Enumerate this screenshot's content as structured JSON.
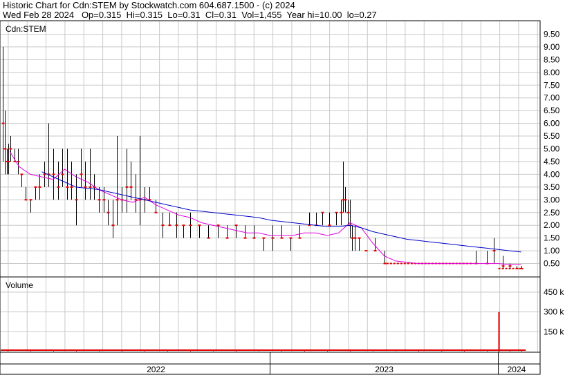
{
  "header": {
    "line1": "Historic Chart for Cdn:STEM by Stockwatch.com 604.687.1500 - (c) 2024",
    "line2": "Wed Feb 28 2024   Op=0.315  Hi=0.315  Lo=0.31  Cl=0.31  Vol=1,455  Year hi=10.00  lo=0.27"
  },
  "colors": {
    "price_bar": "#000000",
    "price_mark": "#e00000",
    "ma_short": "#e000e0",
    "ma_long": "#0000c8",
    "volume_bar": "#e00000",
    "grid": "#c8c8c8"
  },
  "chart_data": [
    {
      "type": "line",
      "panel": "price",
      "label": "Cdn:STEM",
      "ylim": [
        0,
        10.0
      ],
      "yticks": [
        "9.50",
        "9.00",
        "8.50",
        "8.00",
        "7.50",
        "7.00",
        "6.50",
        "6.00",
        "5.50",
        "5.00",
        "4.50",
        "4.00",
        "3.50",
        "3.00",
        "2.50",
        "2.00",
        "1.50",
        "1.00",
        "0.50"
      ],
      "ytick_values": [
        9.5,
        9.0,
        8.5,
        8.0,
        7.5,
        7.0,
        6.5,
        6.0,
        5.5,
        5.0,
        4.5,
        4.0,
        3.5,
        3.0,
        2.5,
        2.0,
        1.5,
        1.0,
        0.5
      ],
      "x_range": [
        2021.82,
        2024.18
      ],
      "grid": true,
      "bars": [
        {
          "x": 2021.83,
          "hi": 9.0,
          "lo": 4.5,
          "c": 6.0
        },
        {
          "x": 2021.838,
          "hi": 6.5,
          "lo": 4.0,
          "c": 5.0
        },
        {
          "x": 2021.846,
          "hi": 5.0,
          "lo": 4.0,
          "c": 4.5
        },
        {
          "x": 2021.854,
          "hi": 5.2,
          "lo": 4.0,
          "c": 4.5
        },
        {
          "x": 2021.862,
          "hi": 5.5,
          "lo": 4.5,
          "c": 5.0
        },
        {
          "x": 2021.88,
          "hi": 5.0,
          "lo": 4.5,
          "c": 4.5
        },
        {
          "x": 2021.895,
          "hi": 5.0,
          "lo": 4.0,
          "c": 4.5
        },
        {
          "x": 2021.91,
          "hi": 4.0,
          "lo": 3.5,
          "c": 4.0
        },
        {
          "x": 2021.93,
          "hi": 3.5,
          "lo": 3.0,
          "c": 3.0
        },
        {
          "x": 2021.95,
          "hi": 3.0,
          "lo": 2.5,
          "c": 3.0
        },
        {
          "x": 2021.97,
          "hi": 3.5,
          "lo": 3.0,
          "c": 3.5
        },
        {
          "x": 2021.99,
          "hi": 4.0,
          "lo": 3.0,
          "c": 3.5
        },
        {
          "x": 2022.01,
          "hi": 4.5,
          "lo": 3.5,
          "c": 4.0
        },
        {
          "x": 2022.03,
          "hi": 6.0,
          "lo": 3.5,
          "c": 4.0
        },
        {
          "x": 2022.05,
          "hi": 5.0,
          "lo": 3.0,
          "c": 4.0
        },
        {
          "x": 2022.07,
          "hi": 4.5,
          "lo": 3.0,
          "c": 3.5
        },
        {
          "x": 2022.09,
          "hi": 5.0,
          "lo": 3.5,
          "c": 4.0
        },
        {
          "x": 2022.11,
          "hi": 5.0,
          "lo": 3.0,
          "c": 3.5
        },
        {
          "x": 2022.13,
          "hi": 4.5,
          "lo": 3.0,
          "c": 3.5
        },
        {
          "x": 2022.15,
          "hi": 4.0,
          "lo": 2.0,
          "c": 3.0
        },
        {
          "x": 2022.17,
          "hi": 5.0,
          "lo": 3.5,
          "c": 4.0
        },
        {
          "x": 2022.19,
          "hi": 4.5,
          "lo": 3.0,
          "c": 3.5
        },
        {
          "x": 2022.21,
          "hi": 5.0,
          "lo": 3.0,
          "c": 3.5
        },
        {
          "x": 2022.23,
          "hi": 4.0,
          "lo": 3.0,
          "c": 3.5
        },
        {
          "x": 2022.25,
          "hi": 3.5,
          "lo": 2.5,
          "c": 3.0
        },
        {
          "x": 2022.27,
          "hi": 3.5,
          "lo": 2.5,
          "c": 3.0
        },
        {
          "x": 2022.29,
          "hi": 3.0,
          "lo": 2.0,
          "c": 2.5
        },
        {
          "x": 2022.31,
          "hi": 3.0,
          "lo": 1.5,
          "c": 2.0
        },
        {
          "x": 2022.33,
          "hi": 5.5,
          "lo": 2.0,
          "c": 3.0
        },
        {
          "x": 2022.35,
          "hi": 3.5,
          "lo": 2.5,
          "c": 3.0
        },
        {
          "x": 2022.37,
          "hi": 5.0,
          "lo": 2.5,
          "c": 3.5
        },
        {
          "x": 2022.39,
          "hi": 4.5,
          "lo": 3.0,
          "c": 3.5
        },
        {
          "x": 2022.41,
          "hi": 4.0,
          "lo": 2.5,
          "c": 3.0
        },
        {
          "x": 2022.43,
          "hi": 5.5,
          "lo": 2.0,
          "c": 3.0
        },
        {
          "x": 2022.45,
          "hi": 3.5,
          "lo": 2.5,
          "c": 3.0
        },
        {
          "x": 2022.47,
          "hi": 3.5,
          "lo": 3.0,
          "c": 3.0
        },
        {
          "x": 2022.5,
          "hi": 3.0,
          "lo": 2.5,
          "c": 2.5
        },
        {
          "x": 2022.53,
          "hi": 2.5,
          "lo": 1.5,
          "c": 2.0
        },
        {
          "x": 2022.56,
          "hi": 2.5,
          "lo": 2.0,
          "c": 2.0
        },
        {
          "x": 2022.59,
          "hi": 2.5,
          "lo": 1.5,
          "c": 2.0
        },
        {
          "x": 2022.62,
          "hi": 2.0,
          "lo": 1.5,
          "c": 2.0
        },
        {
          "x": 2022.65,
          "hi": 2.5,
          "lo": 1.5,
          "c": 2.0
        },
        {
          "x": 2022.69,
          "hi": 2.0,
          "lo": 1.5,
          "c": 2.0
        },
        {
          "x": 2022.73,
          "hi": 2.0,
          "lo": 1.5,
          "c": 1.5
        },
        {
          "x": 2022.77,
          "hi": 2.0,
          "lo": 1.5,
          "c": 2.0
        },
        {
          "x": 2022.81,
          "hi": 2.0,
          "lo": 1.5,
          "c": 1.5
        },
        {
          "x": 2022.85,
          "hi": 2.0,
          "lo": 1.5,
          "c": 2.0
        },
        {
          "x": 2022.89,
          "hi": 2.0,
          "lo": 1.5,
          "c": 1.5
        },
        {
          "x": 2022.93,
          "hi": 2.0,
          "lo": 1.5,
          "c": 1.5
        },
        {
          "x": 2022.97,
          "hi": 1.5,
          "lo": 1.0,
          "c": 1.5
        },
        {
          "x": 2023.01,
          "hi": 2.0,
          "lo": 1.0,
          "c": 1.5
        },
        {
          "x": 2023.05,
          "hi": 2.0,
          "lo": 1.5,
          "c": 1.5
        },
        {
          "x": 2023.09,
          "hi": 1.5,
          "lo": 1.0,
          "c": 1.5
        },
        {
          "x": 2023.13,
          "hi": 2.0,
          "lo": 1.5,
          "c": 1.5
        },
        {
          "x": 2023.17,
          "hi": 2.5,
          "lo": 2.0,
          "c": 2.0
        },
        {
          "x": 2023.2,
          "hi": 2.5,
          "lo": 2.0,
          "c": 2.0
        },
        {
          "x": 2023.23,
          "hi": 2.5,
          "lo": 2.0,
          "c": 2.5
        },
        {
          "x": 2023.26,
          "hi": 2.5,
          "lo": 2.0,
          "c": 2.0
        },
        {
          "x": 2023.29,
          "hi": 2.5,
          "lo": 2.0,
          "c": 2.5
        },
        {
          "x": 2023.31,
          "hi": 3.0,
          "lo": 2.0,
          "c": 2.5
        },
        {
          "x": 2023.32,
          "hi": 4.5,
          "lo": 2.5,
          "c": 3.0
        },
        {
          "x": 2023.33,
          "hi": 3.5,
          "lo": 2.5,
          "c": 3.0
        },
        {
          "x": 2023.34,
          "hi": 3.0,
          "lo": 2.0,
          "c": 2.5
        },
        {
          "x": 2023.35,
          "hi": 3.0,
          "lo": 1.5,
          "c": 2.0
        },
        {
          "x": 2023.36,
          "hi": 2.0,
          "lo": 1.0,
          "c": 1.5
        },
        {
          "x": 2023.37,
          "hi": 2.0,
          "lo": 1.0,
          "c": 1.5
        },
        {
          "x": 2023.39,
          "hi": 1.5,
          "lo": 1.0,
          "c": 1.5
        },
        {
          "x": 2023.42,
          "hi": 1.0,
          "lo": 1.0,
          "c": 1.0
        },
        {
          "x": 2023.46,
          "hi": 1.5,
          "lo": 1.0,
          "c": 1.0
        },
        {
          "x": 2023.5,
          "hi": 1.0,
          "lo": 0.5,
          "c": 0.5
        },
        {
          "x": 2023.9,
          "hi": 1.0,
          "lo": 0.5,
          "c": 0.5
        },
        {
          "x": 2023.95,
          "hi": 1.0,
          "lo": 0.5,
          "c": 0.5
        },
        {
          "x": 2023.98,
          "hi": 1.5,
          "lo": 0.5,
          "c": 1.0
        },
        {
          "x": 2024.02,
          "hi": 0.8,
          "lo": 0.3,
          "c": 0.4
        },
        {
          "x": 2024.05,
          "hi": 0.5,
          "lo": 0.3,
          "c": 0.4
        },
        {
          "x": 2024.08,
          "hi": 0.4,
          "lo": 0.3,
          "c": 0.3
        },
        {
          "x": 2024.1,
          "hi": 0.4,
          "lo": 0.28,
          "c": 0.3
        }
      ],
      "flat": [
        {
          "x0": 2023.51,
          "x1": 2023.89,
          "y": 0.5
        },
        {
          "x0": 2024.0,
          "x1": 2024.1,
          "y": 0.3
        }
      ],
      "series": [
        {
          "x": [
            2021.86,
            2021.9,
            2021.95,
            2022.0,
            2022.05,
            2022.1,
            2022.15,
            2022.2,
            2022.25,
            2022.3,
            2022.35,
            2022.4,
            2022.45,
            2022.5,
            2022.55,
            2022.6,
            2022.65,
            2022.7,
            2022.75,
            2022.8,
            2022.85,
            2022.9,
            2022.95,
            2023.0,
            2023.05,
            2023.1,
            2023.15,
            2023.2,
            2023.25,
            2023.3,
            2023.35,
            2023.4,
            2023.45,
            2023.5,
            2023.55,
            2023.6,
            2023.65,
            2023.7,
            2023.75,
            2023.8,
            2023.85,
            2023.9,
            2023.95,
            2024.0,
            2024.05,
            2024.1
          ],
          "values": [
            4.9,
            4.3,
            4.0,
            3.9,
            3.8,
            4.2,
            3.9,
            3.7,
            3.4,
            3.2,
            3.0,
            2.9,
            3.1,
            2.8,
            2.6,
            2.4,
            2.3,
            2.1,
            2.0,
            1.9,
            1.8,
            1.7,
            1.7,
            1.6,
            1.6,
            1.6,
            1.7,
            1.7,
            1.6,
            1.7,
            2.1,
            1.9,
            1.3,
            0.8,
            0.6,
            0.55,
            0.5,
            0.5,
            0.5,
            0.5,
            0.5,
            0.5,
            0.5,
            0.5,
            0.45,
            0.45
          ]
        },
        {
          "x": [
            2022.0,
            2022.05,
            2022.1,
            2022.15,
            2022.2,
            2022.25,
            2022.3,
            2022.35,
            2022.4,
            2022.45,
            2022.5,
            2022.55,
            2022.6,
            2022.65,
            2022.7,
            2022.75,
            2022.8,
            2022.85,
            2022.9,
            2022.95,
            2023.0,
            2023.05,
            2023.1,
            2023.15,
            2023.2,
            2023.25,
            2023.3,
            2023.35,
            2023.4,
            2023.45,
            2023.5,
            2023.55,
            2023.6,
            2023.65,
            2023.7,
            2023.75,
            2023.8,
            2023.85,
            2023.9,
            2023.95,
            2024.0,
            2024.05,
            2024.1
          ],
          "values": [
            4.1,
            3.9,
            3.7,
            3.5,
            3.45,
            3.4,
            3.3,
            3.2,
            3.1,
            3.0,
            2.9,
            2.8,
            2.7,
            2.6,
            2.55,
            2.5,
            2.45,
            2.4,
            2.35,
            2.3,
            2.2,
            2.15,
            2.1,
            2.05,
            2.0,
            1.95,
            1.95,
            2.0,
            1.9,
            1.75,
            1.65,
            1.55,
            1.45,
            1.4,
            1.35,
            1.3,
            1.25,
            1.2,
            1.15,
            1.1,
            1.05,
            1.0,
            0.95
          ]
        }
      ]
    },
    {
      "type": "bar",
      "panel": "volume",
      "label": "Volume",
      "ylim": [
        0,
        560
      ],
      "yticks": [
        "450 k",
        "300 k",
        "150 k"
      ],
      "ytick_values": [
        450,
        300,
        150
      ],
      "x_range": [
        2021.82,
        2024.18
      ],
      "grid": true,
      "x": [
        2021.85,
        2021.95,
        2022.05,
        2022.15,
        2022.25,
        2022.35,
        2022.45,
        2022.55,
        2022.65,
        2022.75,
        2022.85,
        2022.95,
        2023.05,
        2023.15,
        2023.25,
        2023.35,
        2023.45,
        2023.55,
        2023.65,
        2023.75,
        2023.85,
        2023.95,
        2024.0,
        2024.05,
        2024.1
      ],
      "values": [
        15,
        10,
        8,
        12,
        6,
        10,
        8,
        5,
        6,
        4,
        5,
        4,
        5,
        6,
        5,
        8,
        4,
        3,
        5,
        4,
        6,
        10,
        300,
        12,
        5
      ]
    }
  ],
  "x_axis": {
    "labels": [
      "2022",
      "2023",
      "2024"
    ],
    "label_x": [
      2022.5,
      2023.5,
      2024.08
    ]
  }
}
